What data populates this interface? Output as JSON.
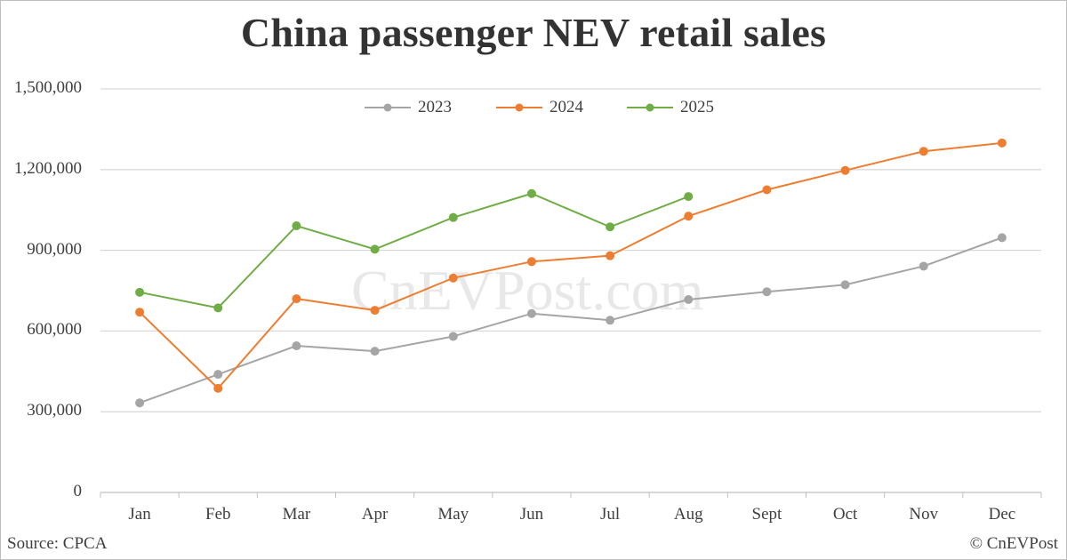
{
  "title": "China passenger NEV retail sales",
  "watermark": "CnEVPost.com",
  "source": "Source: CPCA",
  "copyright": "© CnEVPost",
  "colors": {
    "2023": "#a5a5a5",
    "2024": "#ed7d31",
    "2025": "#70ad47",
    "grid": "#d9d9d9"
  },
  "y_ticks": [
    "1,500,000",
    "1,200,000",
    "900,000",
    "600,000",
    "300,000",
    "0"
  ],
  "legend": [
    {
      "label": "2023",
      "color": "#a5a5a5"
    },
    {
      "label": "2024",
      "color": "#ed7d31"
    },
    {
      "label": "2025",
      "color": "#70ad47"
    }
  ],
  "chart_data": {
    "type": "line",
    "title": "China passenger NEV retail sales",
    "xlabel": "",
    "ylabel": "",
    "ylim": [
      0,
      1500000
    ],
    "yticks": [
      0,
      300000,
      600000,
      900000,
      1200000,
      1500000
    ],
    "grid": true,
    "legend_position": "top",
    "categories": [
      "Jan",
      "Feb",
      "Mar",
      "Apr",
      "May",
      "Jun",
      "Jul",
      "Aug",
      "Sept",
      "Oct",
      "Nov",
      "Dec"
    ],
    "series": [
      {
        "name": "2023",
        "color": "#a5a5a5",
        "values": [
          333000,
          439000,
          545000,
          525000,
          580000,
          665000,
          640000,
          717000,
          746000,
          772000,
          841000,
          947000
        ]
      },
      {
        "name": "2024",
        "color": "#ed7d31",
        "values": [
          670000,
          387000,
          720000,
          677000,
          797000,
          858000,
          880000,
          1027000,
          1125000,
          1197000,
          1268000,
          1299000
        ]
      },
      {
        "name": "2025",
        "color": "#70ad47",
        "values": [
          744000,
          686000,
          991000,
          904000,
          1022000,
          1111000,
          987000,
          1100000
        ]
      }
    ],
    "annotations": [
      "Source: CPCA",
      "© CnEVPost",
      "CnEVPost.com (watermark)"
    ]
  }
}
